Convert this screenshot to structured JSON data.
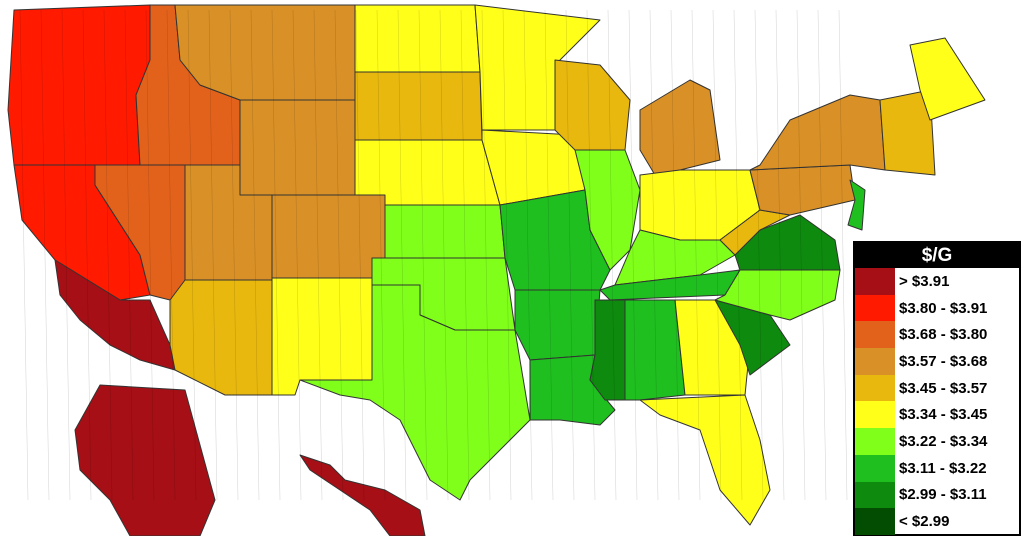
{
  "map": {
    "regions": [
      {
        "name": "Washington-Oregon",
        "bin": 1
      },
      {
        "name": "Northern California",
        "bin": 1
      },
      {
        "name": "Southern California",
        "bin": 0
      },
      {
        "name": "Nevada",
        "bin": 2
      },
      {
        "name": "Idaho",
        "bin": 2
      },
      {
        "name": "Montana",
        "bin": 3
      },
      {
        "name": "Wyoming",
        "bin": 3
      },
      {
        "name": "Utah",
        "bin": 3
      },
      {
        "name": "Colorado",
        "bin": 3
      },
      {
        "name": "Arizona",
        "bin": 4
      },
      {
        "name": "New Mexico",
        "bin": 5
      },
      {
        "name": "North Dakota",
        "bin": 5
      },
      {
        "name": "South Dakota",
        "bin": 4
      },
      {
        "name": "Nebraska",
        "bin": 5
      },
      {
        "name": "Kansas",
        "bin": 6
      },
      {
        "name": "Oklahoma",
        "bin": 6
      },
      {
        "name": "Texas",
        "bin": 6
      },
      {
        "name": "Minnesota",
        "bin": 5
      },
      {
        "name": "Iowa",
        "bin": 5
      },
      {
        "name": "Missouri",
        "bin": 7
      },
      {
        "name": "Arkansas",
        "bin": 7
      },
      {
        "name": "Louisiana",
        "bin": 7
      },
      {
        "name": "Wisconsin",
        "bin": 4
      },
      {
        "name": "Illinois",
        "bin": 6
      },
      {
        "name": "Michigan",
        "bin": 3
      },
      {
        "name": "Indiana-Ohio",
        "bin": 5
      },
      {
        "name": "Kentucky",
        "bin": 6
      },
      {
        "name": "Tennessee",
        "bin": 7
      },
      {
        "name": "Mississippi",
        "bin": 8
      },
      {
        "name": "Alabama",
        "bin": 7
      },
      {
        "name": "Georgia",
        "bin": 5
      },
      {
        "name": "Florida",
        "bin": 5
      },
      {
        "name": "South Carolina",
        "bin": 8
      },
      {
        "name": "North Carolina",
        "bin": 6
      },
      {
        "name": "Virginia",
        "bin": 8
      },
      {
        "name": "West Virginia",
        "bin": 4
      },
      {
        "name": "Pennsylvania",
        "bin": 3
      },
      {
        "name": "New York",
        "bin": 3
      },
      {
        "name": "New Jersey",
        "bin": 7
      },
      {
        "name": "New England",
        "bin": 4
      },
      {
        "name": "Maine",
        "bin": 5
      },
      {
        "name": "Alaska",
        "bin": 0
      },
      {
        "name": "Hawaii",
        "bin": 0
      }
    ]
  },
  "legend": {
    "title": "$/G",
    "items": [
      {
        "label": "> $3.91",
        "color": "#a50f15"
      },
      {
        "label": "$3.80 - $3.91",
        "color": "#ff1a00"
      },
      {
        "label": "$3.68 - $3.80",
        "color": "#e2621b"
      },
      {
        "label": "$3.57 - $3.68",
        "color": "#d99026"
      },
      {
        "label": "$3.45 - $3.57",
        "color": "#e8b80e"
      },
      {
        "label": "$3.34 - $3.45",
        "color": "#ffff1a"
      },
      {
        "label": "$3.22 - $3.34",
        "color": "#7fff1a"
      },
      {
        "label": "$3.11 - $3.22",
        "color": "#1fbf1f"
      },
      {
        "label": "$2.99 - $3.11",
        "color": "#0e8a0e"
      },
      {
        "label": "< $2.99",
        "color": "#034d03"
      }
    ]
  }
}
